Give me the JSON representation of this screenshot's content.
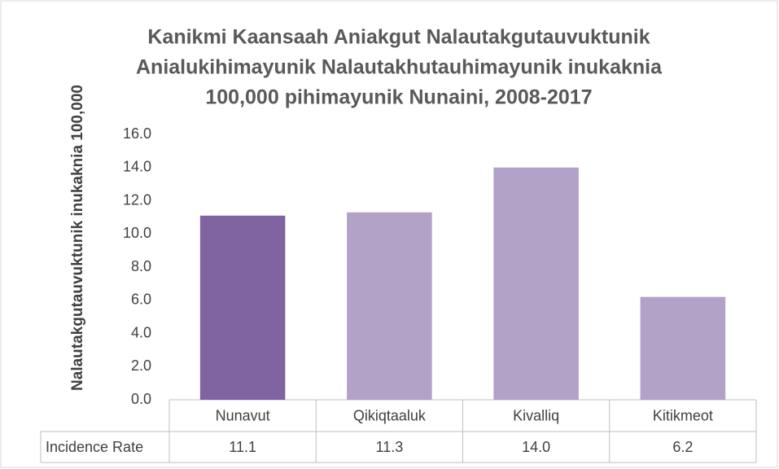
{
  "chart_data": {
    "type": "bar",
    "title": [
      "Kanikmi Kaansaah Aniakgut Nalautakgutauvuktunik",
      "Anialukihimayunik Nalautakhutauhimayunik inukaknia",
      "100,000 pihimayunik Nunaini, 2008-2017"
    ],
    "y_label": "Nalautakgutauvuktunik inukaknia 100,000",
    "categories": [
      "Nunavut",
      "Qikiqtaaluk",
      "Kivalliq",
      "Kitikmeot"
    ],
    "series": [
      {
        "name": "Incidence Rate",
        "values": [
          11.1,
          11.3,
          14,
          6.2
        ],
        "value_labels": [
          "11.1",
          "11.3",
          "14.0",
          "6.2"
        ],
        "colors": [
          "#8064a2",
          "#b3a2c7",
          "#b3a2c7",
          "#b3a2c7"
        ]
      }
    ],
    "ylim": [
      0,
      16
    ],
    "yticks": [
      {
        "value": 0,
        "label": "0.0"
      },
      {
        "value": 2,
        "label": "2.0"
      },
      {
        "value": 4,
        "label": "4.0"
      },
      {
        "value": 6,
        "label": "6.0"
      },
      {
        "value": 8,
        "label": "8.0"
      },
      {
        "value": 10,
        "label": "10.0"
      },
      {
        "value": 12,
        "label": "12.0"
      },
      {
        "value": 14,
        "label": "14.0"
      },
      {
        "value": 16,
        "label": "16.0"
      }
    ],
    "grid": false
  }
}
